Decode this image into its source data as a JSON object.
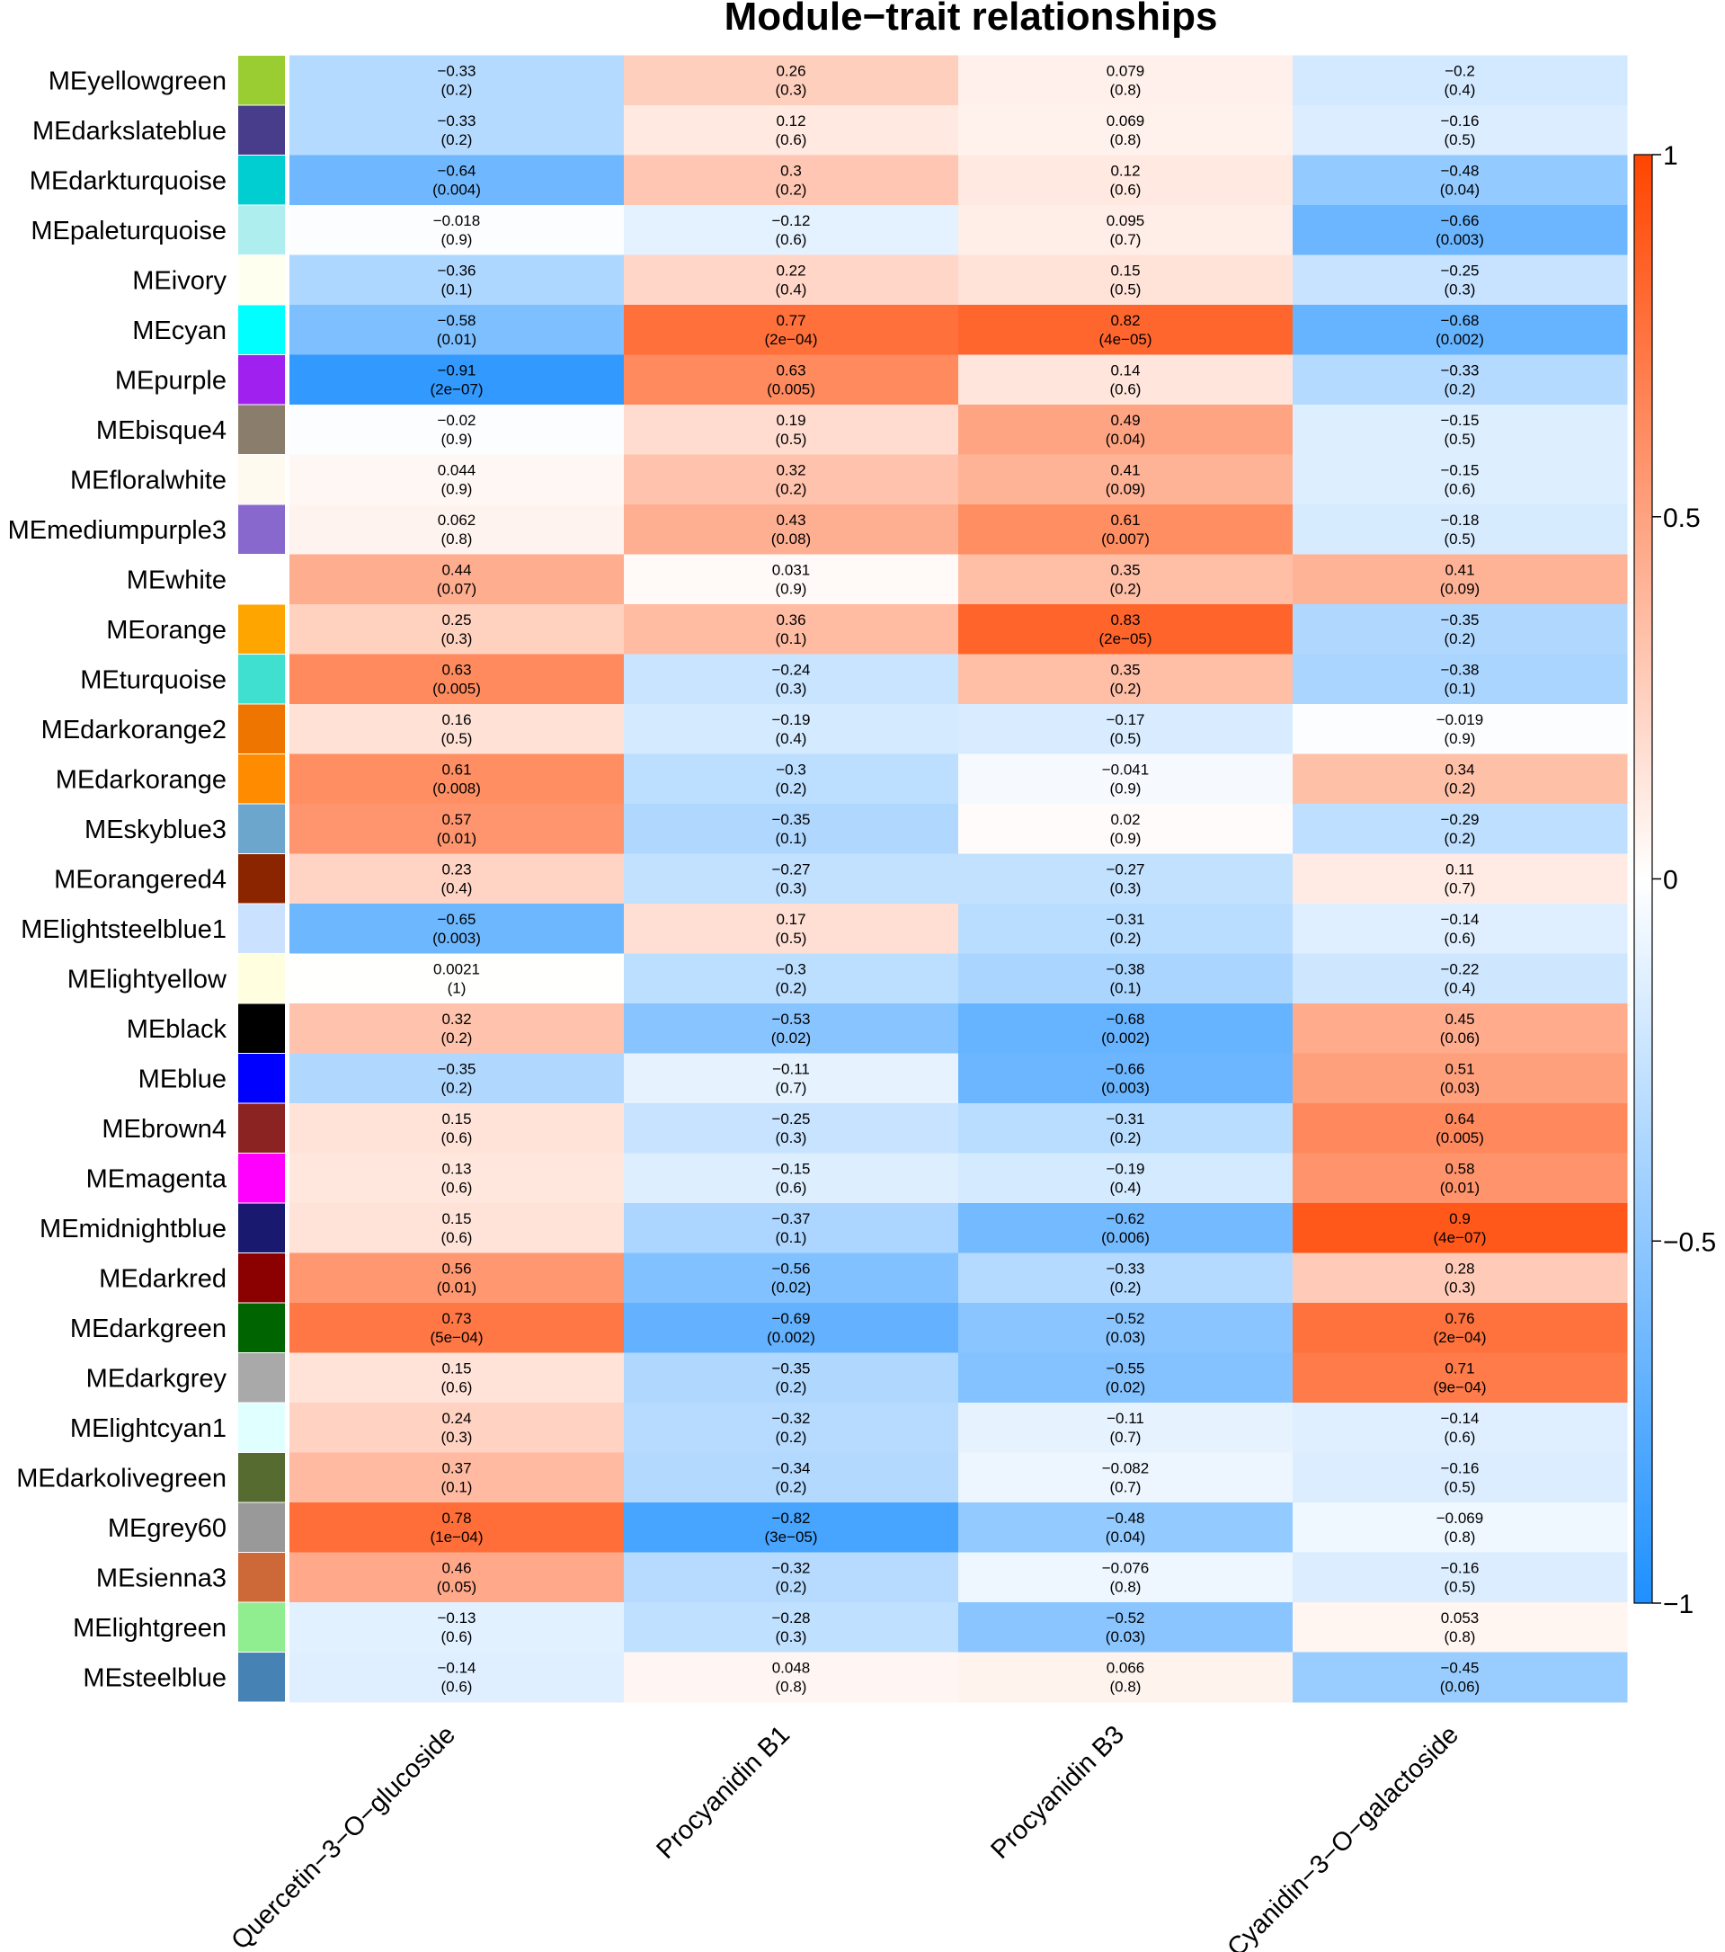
{
  "chart_data": {
    "type": "heatmap",
    "title": "Module−trait relationships",
    "columns": [
      "Quercetin−3−O−glucoside",
      "Procyanidin B1",
      "Procyanidin B3",
      "Cyanidin−3−O−galactoside"
    ],
    "rows": [
      {
        "name": "MEyellowgreen",
        "color": "#9ACD32",
        "cells": [
          [
            "−0.33",
            "(0.2)"
          ],
          [
            "0.26",
            "(0.3)"
          ],
          [
            "0.079",
            "(0.8)"
          ],
          [
            "−0.2",
            "(0.4)"
          ]
        ]
      },
      {
        "name": "MEdarkslateblue",
        "color": "#483D8B",
        "cells": [
          [
            "−0.33",
            "(0.2)"
          ],
          [
            "0.12",
            "(0.6)"
          ],
          [
            "0.069",
            "(0.8)"
          ],
          [
            "−0.16",
            "(0.5)"
          ]
        ]
      },
      {
        "name": "MEdarkturquoise",
        "color": "#00CED1",
        "cells": [
          [
            "−0.64",
            "(0.004)"
          ],
          [
            "0.3",
            "(0.2)"
          ],
          [
            "0.12",
            "(0.6)"
          ],
          [
            "−0.48",
            "(0.04)"
          ]
        ]
      },
      {
        "name": "MEpaleturquoise",
        "color": "#AFEEEE",
        "cells": [
          [
            "−0.018",
            "(0.9)"
          ],
          [
            "−0.12",
            "(0.6)"
          ],
          [
            "0.095",
            "(0.7)"
          ],
          [
            "−0.66",
            "(0.003)"
          ]
        ]
      },
      {
        "name": "MEivory",
        "color": "#FFFFF0",
        "cells": [
          [
            "−0.36",
            "(0.1)"
          ],
          [
            "0.22",
            "(0.4)"
          ],
          [
            "0.15",
            "(0.5)"
          ],
          [
            "−0.25",
            "(0.3)"
          ]
        ]
      },
      {
        "name": "MEcyan",
        "color": "#00FFFF",
        "cells": [
          [
            "−0.58",
            "(0.01)"
          ],
          [
            "0.77",
            "(2e−04)"
          ],
          [
            "0.82",
            "(4e−05)"
          ],
          [
            "−0.68",
            "(0.002)"
          ]
        ]
      },
      {
        "name": "MEpurple",
        "color": "#A020F0",
        "cells": [
          [
            "−0.91",
            "(2e−07)"
          ],
          [
            "0.63",
            "(0.005)"
          ],
          [
            "0.14",
            "(0.6)"
          ],
          [
            "−0.33",
            "(0.2)"
          ]
        ]
      },
      {
        "name": "MEbisque4",
        "color": "#8B7D6B",
        "cells": [
          [
            "−0.02",
            "(0.9)"
          ],
          [
            "0.19",
            "(0.5)"
          ],
          [
            "0.49",
            "(0.04)"
          ],
          [
            "−0.15",
            "(0.5)"
          ]
        ]
      },
      {
        "name": "MEfloralwhite",
        "color": "#FFFAF0",
        "cells": [
          [
            "0.044",
            "(0.9)"
          ],
          [
            "0.32",
            "(0.2)"
          ],
          [
            "0.41",
            "(0.09)"
          ],
          [
            "−0.15",
            "(0.6)"
          ]
        ]
      },
      {
        "name": "MEmediumpurple3",
        "color": "#8968CD",
        "cells": [
          [
            "0.062",
            "(0.8)"
          ],
          [
            "0.43",
            "(0.08)"
          ],
          [
            "0.61",
            "(0.007)"
          ],
          [
            "−0.18",
            "(0.5)"
          ]
        ]
      },
      {
        "name": "MEwhite",
        "color": "#FFFFFF",
        "cells": [
          [
            "0.44",
            "(0.07)"
          ],
          [
            "0.031",
            "(0.9)"
          ],
          [
            "0.35",
            "(0.2)"
          ],
          [
            "0.41",
            "(0.09)"
          ]
        ]
      },
      {
        "name": "MEorange",
        "color": "#FFA500",
        "cells": [
          [
            "0.25",
            "(0.3)"
          ],
          [
            "0.36",
            "(0.1)"
          ],
          [
            "0.83",
            "(2e−05)"
          ],
          [
            "−0.35",
            "(0.2)"
          ]
        ]
      },
      {
        "name": "MEturquoise",
        "color": "#40E0D0",
        "cells": [
          [
            "0.63",
            "(0.005)"
          ],
          [
            "−0.24",
            "(0.3)"
          ],
          [
            "0.35",
            "(0.2)"
          ],
          [
            "−0.38",
            "(0.1)"
          ]
        ]
      },
      {
        "name": "MEdarkorange2",
        "color": "#EE7600",
        "cells": [
          [
            "0.16",
            "(0.5)"
          ],
          [
            "−0.19",
            "(0.4)"
          ],
          [
            "−0.17",
            "(0.5)"
          ],
          [
            "−0.019",
            "(0.9)"
          ]
        ]
      },
      {
        "name": "MEdarkorange",
        "color": "#FF8C00",
        "cells": [
          [
            "0.61",
            "(0.008)"
          ],
          [
            "−0.3",
            "(0.2)"
          ],
          [
            "−0.041",
            "(0.9)"
          ],
          [
            "0.34",
            "(0.2)"
          ]
        ]
      },
      {
        "name": "MEskyblue3",
        "color": "#6CA6CD",
        "cells": [
          [
            "0.57",
            "(0.01)"
          ],
          [
            "−0.35",
            "(0.1)"
          ],
          [
            "0.02",
            "(0.9)"
          ],
          [
            "−0.29",
            "(0.2)"
          ]
        ]
      },
      {
        "name": "MEorangered4",
        "color": "#8B2500",
        "cells": [
          [
            "0.23",
            "(0.4)"
          ],
          [
            "−0.27",
            "(0.3)"
          ],
          [
            "−0.27",
            "(0.3)"
          ],
          [
            "0.11",
            "(0.7)"
          ]
        ]
      },
      {
        "name": "MElightsteelblue1",
        "color": "#CAE1FF",
        "cells": [
          [
            "−0.65",
            "(0.003)"
          ],
          [
            "0.17",
            "(0.5)"
          ],
          [
            "−0.31",
            "(0.2)"
          ],
          [
            "−0.14",
            "(0.6)"
          ]
        ]
      },
      {
        "name": "MElightyellow",
        "color": "#FFFFE0",
        "cells": [
          [
            "0.0021",
            "(1)"
          ],
          [
            "−0.3",
            "(0.2)"
          ],
          [
            "−0.38",
            "(0.1)"
          ],
          [
            "−0.22",
            "(0.4)"
          ]
        ]
      },
      {
        "name": "MEblack",
        "color": "#000000",
        "cells": [
          [
            "0.32",
            "(0.2)"
          ],
          [
            "−0.53",
            "(0.02)"
          ],
          [
            "−0.68",
            "(0.002)"
          ],
          [
            "0.45",
            "(0.06)"
          ]
        ]
      },
      {
        "name": "MEblue",
        "color": "#0000FF",
        "cells": [
          [
            "−0.35",
            "(0.2)"
          ],
          [
            "−0.11",
            "(0.7)"
          ],
          [
            "−0.66",
            "(0.003)"
          ],
          [
            "0.51",
            "(0.03)"
          ]
        ]
      },
      {
        "name": "MEbrown4",
        "color": "#8B2323",
        "cells": [
          [
            "0.15",
            "(0.6)"
          ],
          [
            "−0.25",
            "(0.3)"
          ],
          [
            "−0.31",
            "(0.2)"
          ],
          [
            "0.64",
            "(0.005)"
          ]
        ]
      },
      {
        "name": "MEmagenta",
        "color": "#FF00FF",
        "cells": [
          [
            "0.13",
            "(0.6)"
          ],
          [
            "−0.15",
            "(0.6)"
          ],
          [
            "−0.19",
            "(0.4)"
          ],
          [
            "0.58",
            "(0.01)"
          ]
        ]
      },
      {
        "name": "MEmidnightblue",
        "color": "#191970",
        "cells": [
          [
            "0.15",
            "(0.6)"
          ],
          [
            "−0.37",
            "(0.1)"
          ],
          [
            "−0.62",
            "(0.006)"
          ],
          [
            "0.9",
            "(4e−07)"
          ]
        ]
      },
      {
        "name": "MEdarkred",
        "color": "#8B0000",
        "cells": [
          [
            "0.56",
            "(0.01)"
          ],
          [
            "−0.56",
            "(0.02)"
          ],
          [
            "−0.33",
            "(0.2)"
          ],
          [
            "0.28",
            "(0.3)"
          ]
        ]
      },
      {
        "name": "MEdarkgreen",
        "color": "#006400",
        "cells": [
          [
            "0.73",
            "(5e−04)"
          ],
          [
            "−0.69",
            "(0.002)"
          ],
          [
            "−0.52",
            "(0.03)"
          ],
          [
            "0.76",
            "(2e−04)"
          ]
        ]
      },
      {
        "name": "MEdarkgrey",
        "color": "#A9A9A9",
        "cells": [
          [
            "0.15",
            "(0.6)"
          ],
          [
            "−0.35",
            "(0.2)"
          ],
          [
            "−0.55",
            "(0.02)"
          ],
          [
            "0.71",
            "(9e−04)"
          ]
        ]
      },
      {
        "name": "MElightcyan1",
        "color": "#E0FFFF",
        "cells": [
          [
            "0.24",
            "(0.3)"
          ],
          [
            "−0.32",
            "(0.2)"
          ],
          [
            "−0.11",
            "(0.7)"
          ],
          [
            "−0.14",
            "(0.6)"
          ]
        ]
      },
      {
        "name": "MEdarkolivegreen",
        "color": "#556B2F",
        "cells": [
          [
            "0.37",
            "(0.1)"
          ],
          [
            "−0.34",
            "(0.2)"
          ],
          [
            "−0.082",
            "(0.7)"
          ],
          [
            "−0.16",
            "(0.5)"
          ]
        ]
      },
      {
        "name": "MEgrey60",
        "color": "#999999",
        "cells": [
          [
            "0.78",
            "(1e−04)"
          ],
          [
            "−0.82",
            "(3e−05)"
          ],
          [
            "−0.48",
            "(0.04)"
          ],
          [
            "−0.069",
            "(0.8)"
          ]
        ]
      },
      {
        "name": "MEsienna3",
        "color": "#CD6839",
        "cells": [
          [
            "0.46",
            "(0.05)"
          ],
          [
            "−0.32",
            "(0.2)"
          ],
          [
            "−0.076",
            "(0.8)"
          ],
          [
            "−0.16",
            "(0.5)"
          ]
        ]
      },
      {
        "name": "MElightgreen",
        "color": "#90EE90",
        "cells": [
          [
            "−0.13",
            "(0.6)"
          ],
          [
            "−0.28",
            "(0.3)"
          ],
          [
            "−0.52",
            "(0.03)"
          ],
          [
            "0.053",
            "(0.8)"
          ]
        ]
      },
      {
        "name": "MEsteelblue",
        "color": "#4682B4",
        "cells": [
          [
            "−0.14",
            "(0.6)"
          ],
          [
            "0.048",
            "(0.8)"
          ],
          [
            "0.066",
            "(0.8)"
          ],
          [
            "−0.45",
            "(0.06)"
          ]
        ]
      }
    ],
    "color_scale": {
      "min": -1,
      "max": 1,
      "low_color": "#1E90FF",
      "mid_color": "#FFFFFF",
      "high_color": "#FF4500",
      "ticks": [
        "1",
        "0.5",
        "0",
        "−0.5",
        "−1"
      ]
    }
  }
}
